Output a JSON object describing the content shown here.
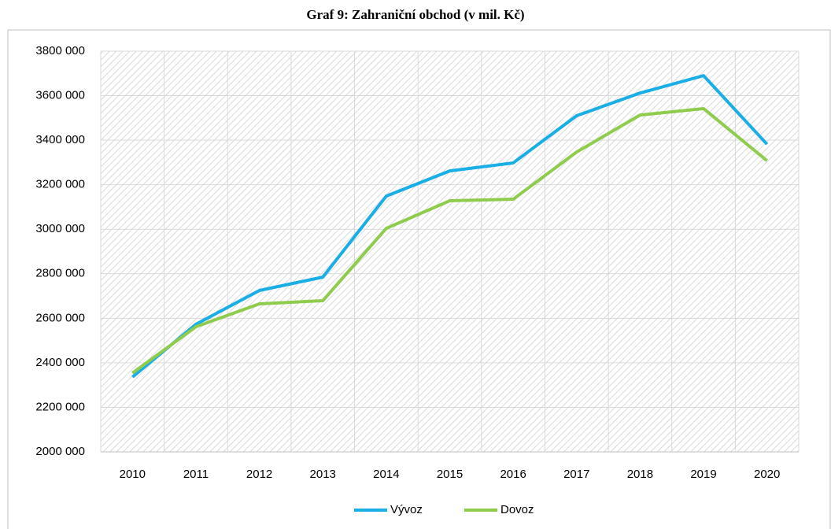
{
  "chart_data": {
    "type": "line",
    "title": "Graf 9: Zahraniční obchod (v mil. Kč)",
    "categories": [
      "2010",
      "2011",
      "2012",
      "2013",
      "2014",
      "2015",
      "2016",
      "2017",
      "2018",
      "2019",
      "2020"
    ],
    "series": [
      {
        "name": "Vývoz",
        "color": "#1aaee6",
        "values": [
          2336000,
          2573000,
          2725000,
          2785000,
          3149000,
          3262000,
          3298000,
          3510000,
          3612000,
          3690000,
          3382000
        ]
      },
      {
        "name": "Dovoz",
        "color": "#8fcc4e",
        "values": [
          2354000,
          2562000,
          2665000,
          2679000,
          3004000,
          3128000,
          3135000,
          3347000,
          3513000,
          3542000,
          3308000
        ]
      }
    ],
    "ylim": [
      2000000,
      3800000
    ],
    "yticks": [
      {
        "value": 2000000,
        "label": "2000 000"
      },
      {
        "value": 2200000,
        "label": "2200 000"
      },
      {
        "value": 2400000,
        "label": "2400 000"
      },
      {
        "value": 2600000,
        "label": "2600 000"
      },
      {
        "value": 2800000,
        "label": "2800 000"
      },
      {
        "value": 3000000,
        "label": "3000 000"
      },
      {
        "value": 3200000,
        "label": "3200 000"
      },
      {
        "value": 3400000,
        "label": "3400 000"
      },
      {
        "value": 3600000,
        "label": "3600 000"
      },
      {
        "value": 3800000,
        "label": "3800 000"
      }
    ],
    "grid": true,
    "legend": "bottom"
  }
}
